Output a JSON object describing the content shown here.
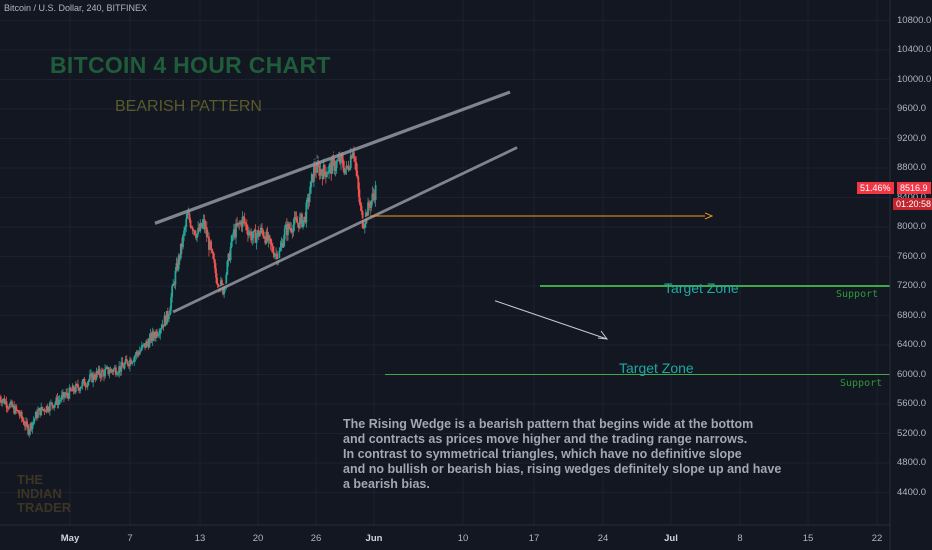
{
  "header": {
    "symbol_line": "Bitcoin / U.S. Dollar, 240, BITFINEX"
  },
  "annotations": {
    "title": "BITCOIN 4 HOUR CHART",
    "subtitle": "BEARISH PATTERN",
    "target_zone_1": "Target Zone",
    "target_zone_2": "Target Zone",
    "support_1": "Support",
    "support_2": "Support",
    "description": "The Rising Wedge is a bearish pattern that begins wide at the bottom\nand contracts as prices move higher and the trading range narrows.\n In contrast to symmetrical triangles, which have no definitive slope\n and no bullish or bearish bias, rising wedges definitely slope up and have\n a bearish bias.",
    "logo": [
      "THE",
      "INDIAN",
      "TRADER"
    ]
  },
  "price_badge": {
    "change": "51.46%",
    "price": "8516.9",
    "countdown": "01:20:58"
  },
  "colors": {
    "background": "#131722",
    "up": "#26a69a",
    "down": "#ef5350",
    "wedge": "#9598a1",
    "support": "#2e9a3a",
    "projection": "#f59a23"
  },
  "chart_data": {
    "type": "candlestick",
    "yticks": [
      "10800.0",
      "10400.0",
      "10000.0",
      "9600.0",
      "9200.0",
      "8800.0",
      "8400.0",
      "8000.0",
      "7600.0",
      "7200.0",
      "6800.0",
      "6400.0",
      "6000.0",
      "5600.0",
      "5200.0",
      "4800.0",
      "4400.0"
    ],
    "xticks": [
      {
        "label": "May",
        "bold": true
      },
      {
        "label": "7"
      },
      {
        "label": "13"
      },
      {
        "label": "20"
      },
      {
        "label": "26"
      },
      {
        "label": "Jun",
        "bold": true
      },
      {
        "label": "10"
      },
      {
        "label": "17"
      },
      {
        "label": "24"
      },
      {
        "label": "Jul",
        "bold": true
      },
      {
        "label": "8"
      },
      {
        "label": "15"
      },
      {
        "label": "22"
      }
    ],
    "ylim": [
      4000,
      11150
    ],
    "close_path": [
      [
        0,
        5700
      ],
      [
        6,
        5480
      ],
      [
        9,
        5250
      ],
      [
        12,
        5490
      ],
      [
        18,
        5640
      ],
      [
        24,
        5820
      ],
      [
        30,
        6000
      ],
      [
        38,
        6100
      ],
      [
        44,
        6350
      ],
      [
        48,
        6550
      ],
      [
        52,
        6800
      ],
      [
        54,
        7300
      ],
      [
        56,
        7700
      ],
      [
        58,
        8150
      ],
      [
        61,
        7900
      ],
      [
        63,
        8050
      ],
      [
        65,
        7700
      ],
      [
        67,
        7300
      ],
      [
        69,
        7150
      ],
      [
        72,
        7900
      ],
      [
        75,
        8100
      ],
      [
        78,
        7850
      ],
      [
        81,
        7950
      ],
      [
        84,
        7700
      ],
      [
        86,
        7600
      ],
      [
        88,
        7950
      ],
      [
        91,
        8050
      ],
      [
        94,
        8100
      ],
      [
        97,
        8800
      ],
      [
        100,
        8750
      ],
      [
        102,
        8800
      ],
      [
        105,
        8900
      ],
      [
        107,
        8750
      ],
      [
        109,
        9100
      ],
      [
        111,
        8300
      ],
      [
        112,
        8050
      ],
      [
        114,
        8300
      ],
      [
        116,
        8517
      ]
    ],
    "wedge_upper": [
      [
        6,
        "2019-05-12",
        8050
      ],
      [
        20.5,
        "2019-06-13",
        9830
      ]
    ],
    "wedge_lower": [
      [
        3,
        "2019-05-12",
        6850
      ],
      [
        20.5,
        "2019-06-13",
        9080
      ]
    ],
    "projection_line": {
      "from": 8150,
      "to": 8150
    },
    "arrow": {
      "from": 7000,
      "to": 6400
    },
    "support_levels": [
      7200,
      6000
    ]
  }
}
